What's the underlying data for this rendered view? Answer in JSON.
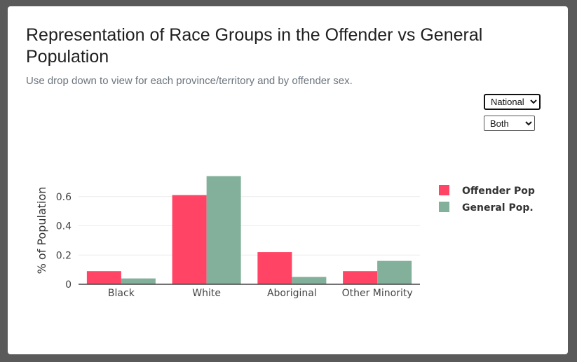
{
  "page": {
    "title": "Representation of Race Groups in the Offender vs General Population",
    "subtitle": "Use drop down to view for each province/territory and by offender sex."
  },
  "controls": {
    "region": {
      "selected": "National",
      "options": [
        "National"
      ]
    },
    "sex": {
      "selected": "Both",
      "options": [
        "Both"
      ]
    }
  },
  "chart_data": {
    "type": "bar",
    "categories": [
      "Black",
      "White",
      "Aboriginal",
      "Other Minority"
    ],
    "series": [
      {
        "name": "Offender Pop",
        "color": "#ff4466",
        "values": [
          0.09,
          0.61,
          0.22,
          0.09
        ]
      },
      {
        "name": "General Pop.",
        "color": "#82b09a",
        "values": [
          0.04,
          0.74,
          0.05,
          0.16
        ]
      }
    ],
    "ylabel": "% of Population",
    "ylim": [
      0,
      0.8
    ],
    "yticks": [
      0,
      0.2,
      0.4,
      0.6
    ],
    "ytick_labels": [
      "0",
      "0.2",
      "0.4",
      "0.6"
    ],
    "grid": true,
    "legend": "right"
  }
}
